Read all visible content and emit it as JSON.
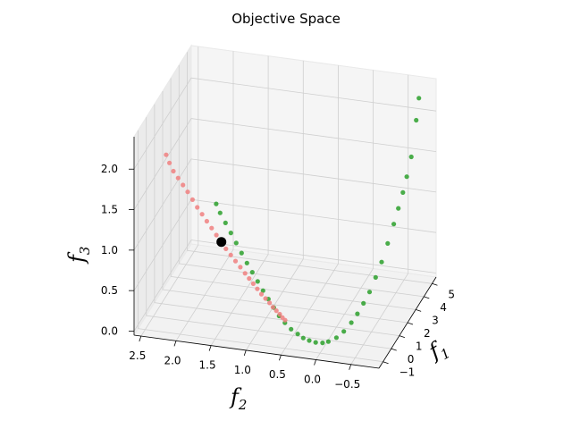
{
  "chart_data": {
    "type": "scatter",
    "title": "Objective Space",
    "xlabel": "f",
    "xlabel_sub": "1",
    "ylabel": "f",
    "ylabel_sub": "2",
    "zlabel": "f",
    "zlabel_sub": "3",
    "xlim": [
      -1.5,
      5.5
    ],
    "ylim": [
      -0.9,
      2.6
    ],
    "zlim": [
      -0.05,
      2.4
    ],
    "x_ticks": [
      "−1",
      "0",
      "1",
      "2",
      "3",
      "4",
      "5"
    ],
    "x_tick_values": [
      -1,
      0,
      1,
      2,
      3,
      4,
      5
    ],
    "y_ticks": [
      "−0.5",
      "0.0",
      "0.5",
      "1.0",
      "1.5",
      "2.0",
      "2.5"
    ],
    "y_tick_values": [
      -0.5,
      0.0,
      0.5,
      1.0,
      1.5,
      2.0,
      2.5
    ],
    "z_ticks": [
      "0.0",
      "0.5",
      "1.0",
      "1.5",
      "2.0"
    ],
    "z_tick_values": [
      0.0,
      0.5,
      1.0,
      1.5,
      2.0
    ],
    "grid": true,
    "series": [
      {
        "color": "#2ca02c",
        "x": [
          5.1,
          4.95,
          4.6,
          4.3,
          4.0,
          3.7,
          3.4,
          3.0,
          2.6,
          2.2,
          1.8,
          1.4,
          1.0,
          0.6,
          0.2,
          -0.2,
          -0.5,
          -0.7,
          -0.85,
          -0.95,
          -1.0,
          -1.0,
          -0.95,
          -0.85,
          -0.7,
          -0.5,
          -0.3,
          -0.1,
          0.1,
          0.3,
          0.5,
          0.7,
          0.9,
          1.1,
          1.3,
          1.5,
          1.7
        ],
        "y": [
          -0.7,
          -0.68,
          -0.65,
          -0.62,
          -0.6,
          -0.57,
          -0.54,
          -0.5,
          -0.46,
          -0.42,
          -0.38,
          -0.34,
          -0.3,
          -0.26,
          -0.2,
          -0.14,
          -0.06,
          0.0,
          0.08,
          0.16,
          0.24,
          0.32,
          0.42,
          0.52,
          0.62,
          0.72,
          0.82,
          0.92,
          1.02,
          1.12,
          1.22,
          1.32,
          1.42,
          1.52,
          1.62,
          1.72,
          1.8
        ],
        "z": [
          2.2,
          1.95,
          1.55,
          1.35,
          1.2,
          1.05,
          0.9,
          0.72,
          0.55,
          0.42,
          0.3,
          0.22,
          0.15,
          0.1,
          0.05,
          0.03,
          0.02,
          0.03,
          0.05,
          0.08,
          0.11,
          0.15,
          0.19,
          0.24,
          0.29,
          0.35,
          0.41,
          0.47,
          0.54,
          0.61,
          0.68,
          0.76,
          0.84,
          0.92,
          1.0,
          1.08,
          1.15
        ]
      },
      {
        "color": "#f08080",
        "x": [
          -1.0,
          -0.9,
          -0.8,
          -0.7,
          -0.6,
          -0.5,
          -0.4,
          -0.3,
          -0.2,
          -0.1,
          0.0,
          0.1,
          0.2,
          0.3,
          0.4,
          0.5,
          0.6,
          0.7,
          0.8,
          0.9,
          1.0,
          1.1,
          1.2,
          1.3,
          1.4,
          1.5,
          1.6,
          1.8,
          2.0
        ],
        "y": [
          0.5,
          0.55,
          0.6,
          0.66,
          0.72,
          0.78,
          0.85,
          0.92,
          0.99,
          1.06,
          1.13,
          1.2,
          1.28,
          1.36,
          1.44,
          1.52,
          1.6,
          1.68,
          1.76,
          1.84,
          1.92,
          2.0,
          2.08,
          2.16,
          2.24,
          2.32,
          2.4,
          2.48,
          2.55
        ],
        "z": [
          0.3,
          0.31,
          0.33,
          0.35,
          0.37,
          0.4,
          0.43,
          0.46,
          0.5,
          0.54,
          0.58,
          0.62,
          0.67,
          0.72,
          0.77,
          0.82,
          0.88,
          0.94,
          1.0,
          1.06,
          1.12,
          1.18,
          1.25,
          1.32,
          1.38,
          1.44,
          1.5,
          1.56,
          1.62
        ]
      },
      {
        "color": "#000000",
        "x": [
          0.2
        ],
        "y": [
          1.55
        ],
        "z": [
          0.95
        ]
      }
    ]
  }
}
